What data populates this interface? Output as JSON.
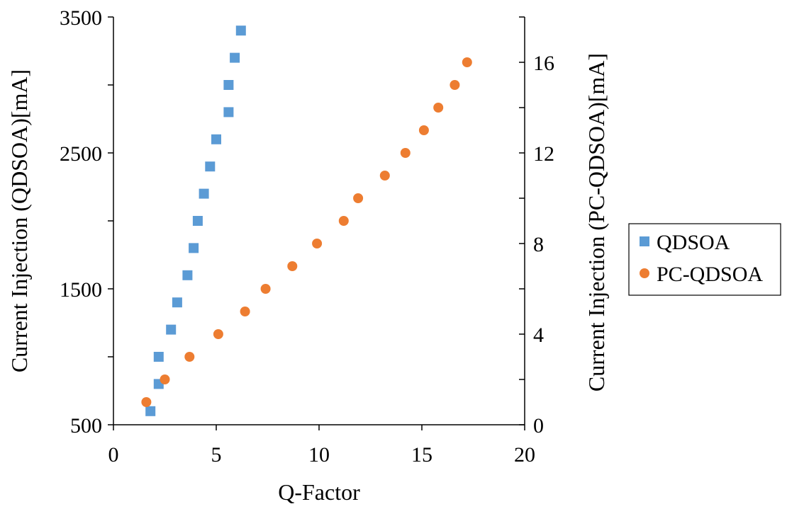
{
  "chart_data": {
    "type": "scatter",
    "title": "",
    "xlabel": "Q-Factor",
    "ylabel_left": "Current Injection (QDSOA)[mA]",
    "ylabel_right": "Current Injection (PC-QDSOA)[mA]",
    "xlim": [
      0,
      20
    ],
    "ylim_left": [
      500,
      3500
    ],
    "ylim_right": [
      0,
      18
    ],
    "x_ticks": [
      "0",
      "5",
      "10",
      "15",
      "20"
    ],
    "y_left_ticks": [
      "500",
      "1500",
      "2500",
      "3500"
    ],
    "y_right_ticks": [
      "0",
      "4",
      "8",
      "12",
      "16"
    ],
    "grid": false,
    "legend_position": "right",
    "series": [
      {
        "name": "QDSOA",
        "axis": "left",
        "marker": "square",
        "color": "#5B9BD5",
        "points": [
          {
            "x": 1.8,
            "y": 600
          },
          {
            "x": 2.2,
            "y": 800
          },
          {
            "x": 2.2,
            "y": 1000
          },
          {
            "x": 2.8,
            "y": 1200
          },
          {
            "x": 3.1,
            "y": 1400
          },
          {
            "x": 3.6,
            "y": 1600
          },
          {
            "x": 3.9,
            "y": 1800
          },
          {
            "x": 4.1,
            "y": 2000
          },
          {
            "x": 4.4,
            "y": 2200
          },
          {
            "x": 4.7,
            "y": 2400
          },
          {
            "x": 5.0,
            "y": 2600
          },
          {
            "x": 5.6,
            "y": 2800
          },
          {
            "x": 5.6,
            "y": 3000
          },
          {
            "x": 5.9,
            "y": 3200
          },
          {
            "x": 6.2,
            "y": 3400
          }
        ]
      },
      {
        "name": "PC-QDSOA",
        "axis": "right",
        "marker": "circle",
        "color": "#ED7D31",
        "points": [
          {
            "x": 1.6,
            "y": 1
          },
          {
            "x": 2.5,
            "y": 2
          },
          {
            "x": 3.7,
            "y": 3
          },
          {
            "x": 5.1,
            "y": 4
          },
          {
            "x": 6.4,
            "y": 5
          },
          {
            "x": 7.4,
            "y": 6
          },
          {
            "x": 8.7,
            "y": 7
          },
          {
            "x": 9.9,
            "y": 8
          },
          {
            "x": 11.2,
            "y": 9
          },
          {
            "x": 11.9,
            "y": 10
          },
          {
            "x": 13.2,
            "y": 11
          },
          {
            "x": 14.2,
            "y": 12
          },
          {
            "x": 15.1,
            "y": 13
          },
          {
            "x": 15.8,
            "y": 14
          },
          {
            "x": 16.6,
            "y": 15
          },
          {
            "x": 17.2,
            "y": 16
          }
        ]
      }
    ]
  }
}
